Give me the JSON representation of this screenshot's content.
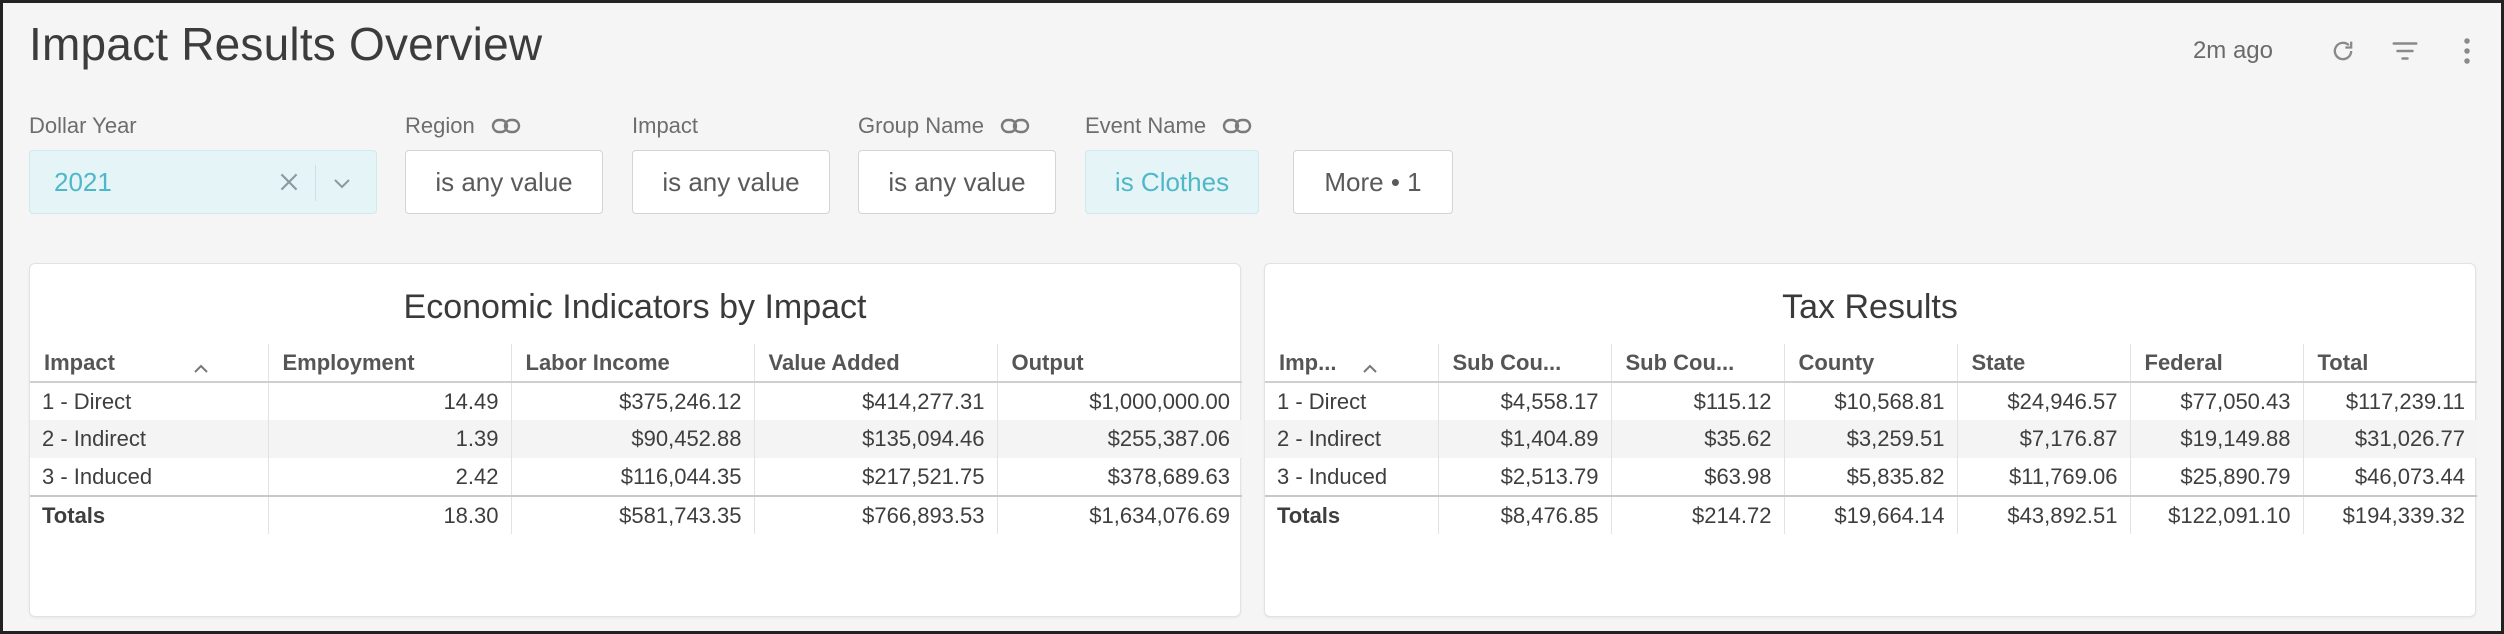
{
  "header": {
    "title": "Impact Results Overview",
    "updated": "2m ago"
  },
  "icons": {
    "refresh": "refresh-icon",
    "filter": "filter-icon",
    "menu": "kebab-menu-icon",
    "link": "link-icon"
  },
  "colors": {
    "accent": "#4fb8c8",
    "active_bg": "#e4f4f7"
  },
  "filters": {
    "dollar_year": {
      "label": "Dollar Year",
      "value": "2021"
    },
    "region": {
      "label": "Region",
      "value": "is any value"
    },
    "impact": {
      "label": "Impact",
      "value": "is any value"
    },
    "group_name": {
      "label": "Group Name",
      "value": "is any value"
    },
    "event_name": {
      "label": "Event Name",
      "value": "is Clothes"
    },
    "more": {
      "label": "More • 1"
    }
  },
  "econ": {
    "title": "Economic Indicators by Impact",
    "columns": [
      "Impact",
      "Employment",
      "Labor Income",
      "Value Added",
      "Output"
    ],
    "rows": [
      [
        "1 - Direct",
        "14.49",
        "$375,246.12",
        "$414,277.31",
        "$1,000,000.00"
      ],
      [
        "2 - Indirect",
        "1.39",
        "$90,452.88",
        "$135,094.46",
        "$255,387.06"
      ],
      [
        "3 - Induced",
        "2.42",
        "$116,044.35",
        "$217,521.75",
        "$378,689.63"
      ]
    ],
    "totals": [
      "Totals",
      "18.30",
      "$581,743.35",
      "$766,893.53",
      "$1,634,076.69"
    ]
  },
  "tax": {
    "title": "Tax Results",
    "columns": [
      "Imp...",
      "Sub Cou...",
      "Sub Cou...",
      "County",
      "State",
      "Federal",
      "Total"
    ],
    "rows": [
      [
        "1 - Direct",
        "$4,558.17",
        "$115.12",
        "$10,568.81",
        "$24,946.57",
        "$77,050.43",
        "$117,239.11"
      ],
      [
        "2 - Indirect",
        "$1,404.89",
        "$35.62",
        "$3,259.51",
        "$7,176.87",
        "$19,149.88",
        "$31,026.77"
      ],
      [
        "3 - Induced",
        "$2,513.79",
        "$63.98",
        "$5,835.82",
        "$11,769.06",
        "$25,890.79",
        "$46,073.44"
      ]
    ],
    "totals": [
      "Totals",
      "$8,476.85",
      "$214.72",
      "$19,664.14",
      "$43,892.51",
      "$122,091.10",
      "$194,339.32"
    ]
  }
}
